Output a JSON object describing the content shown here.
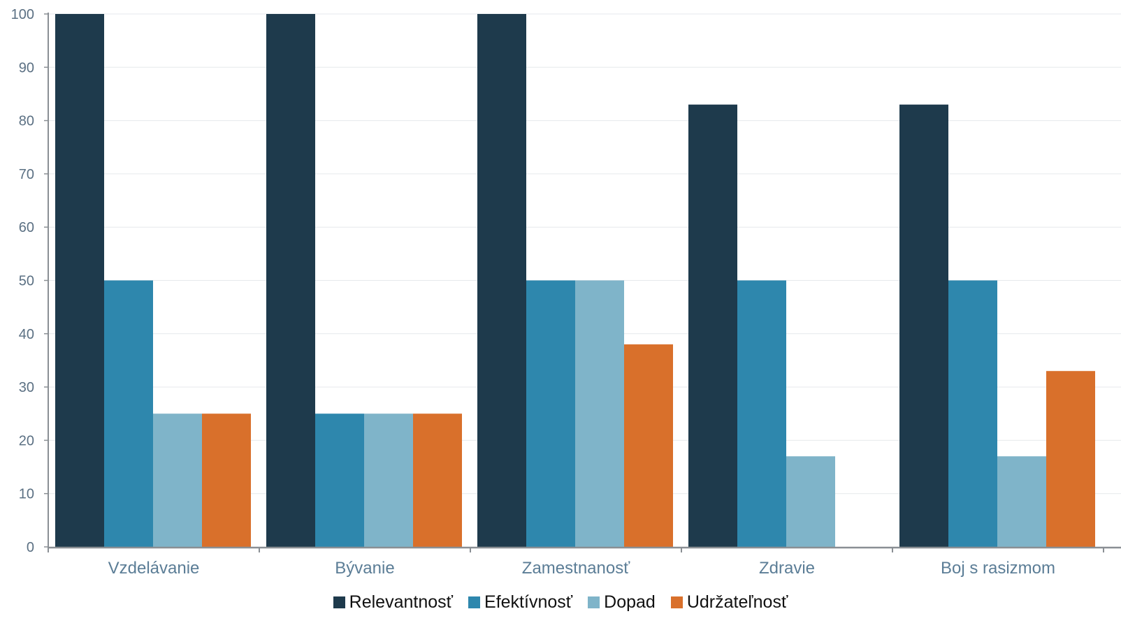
{
  "chart_data": {
    "type": "bar",
    "categories": [
      "Vzdelávanie",
      "Bývanie",
      "Zamestnanosť",
      "Zdravie",
      "Boj s rasizmom"
    ],
    "series": [
      {
        "name": "Relevantnosť",
        "color": "#1e3a4c",
        "values": [
          100,
          100,
          100,
          83,
          83
        ]
      },
      {
        "name": "Efektívnosť",
        "color": "#2e87ad",
        "values": [
          50,
          25,
          50,
          50,
          50
        ]
      },
      {
        "name": "Dopad",
        "color": "#7fb4c9",
        "values": [
          25,
          25,
          50,
          17,
          17
        ]
      },
      {
        "name": "Udržateľnosť",
        "color": "#d9702b",
        "values": [
          25,
          25,
          38,
          0,
          33
        ]
      }
    ],
    "ylim": [
      0,
      100
    ],
    "yticks": [
      0,
      10,
      20,
      30,
      40,
      50,
      60,
      70,
      80,
      90,
      100
    ],
    "grid": true,
    "legend_position": "bottom"
  }
}
